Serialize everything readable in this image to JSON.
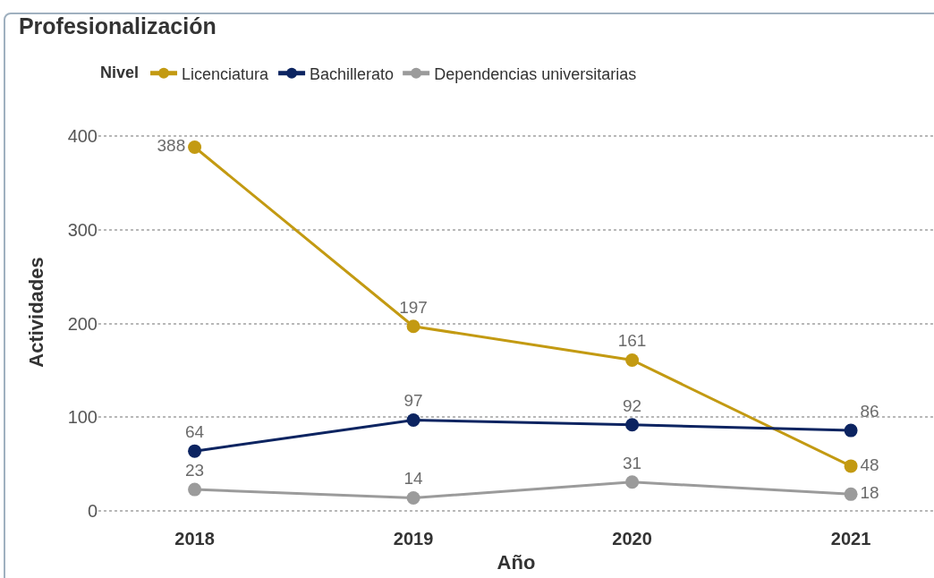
{
  "chart_data": {
    "type": "line",
    "title": "Profesionalización",
    "xlabel": "Año",
    "ylabel": "Actividades",
    "legend_title": "Nivel",
    "categories": [
      "2018",
      "2019",
      "2020",
      "2021"
    ],
    "series": [
      {
        "name": "Licenciatura",
        "color": "#c39a12",
        "values": [
          388,
          197,
          161,
          48
        ]
      },
      {
        "name": "Bachillerato",
        "color": "#0c2461",
        "values": [
          64,
          97,
          92,
          86
        ]
      },
      {
        "name": "Dependencias universitarias",
        "color": "#9b9b9b",
        "values": [
          23,
          14,
          31,
          18
        ]
      }
    ],
    "ylim": [
      0,
      400
    ],
    "yticks": [
      0,
      100,
      200,
      300,
      400
    ],
    "grid": "y",
    "legend": "top left",
    "marker": "circle",
    "line_style": "solid",
    "data_labels": true
  }
}
